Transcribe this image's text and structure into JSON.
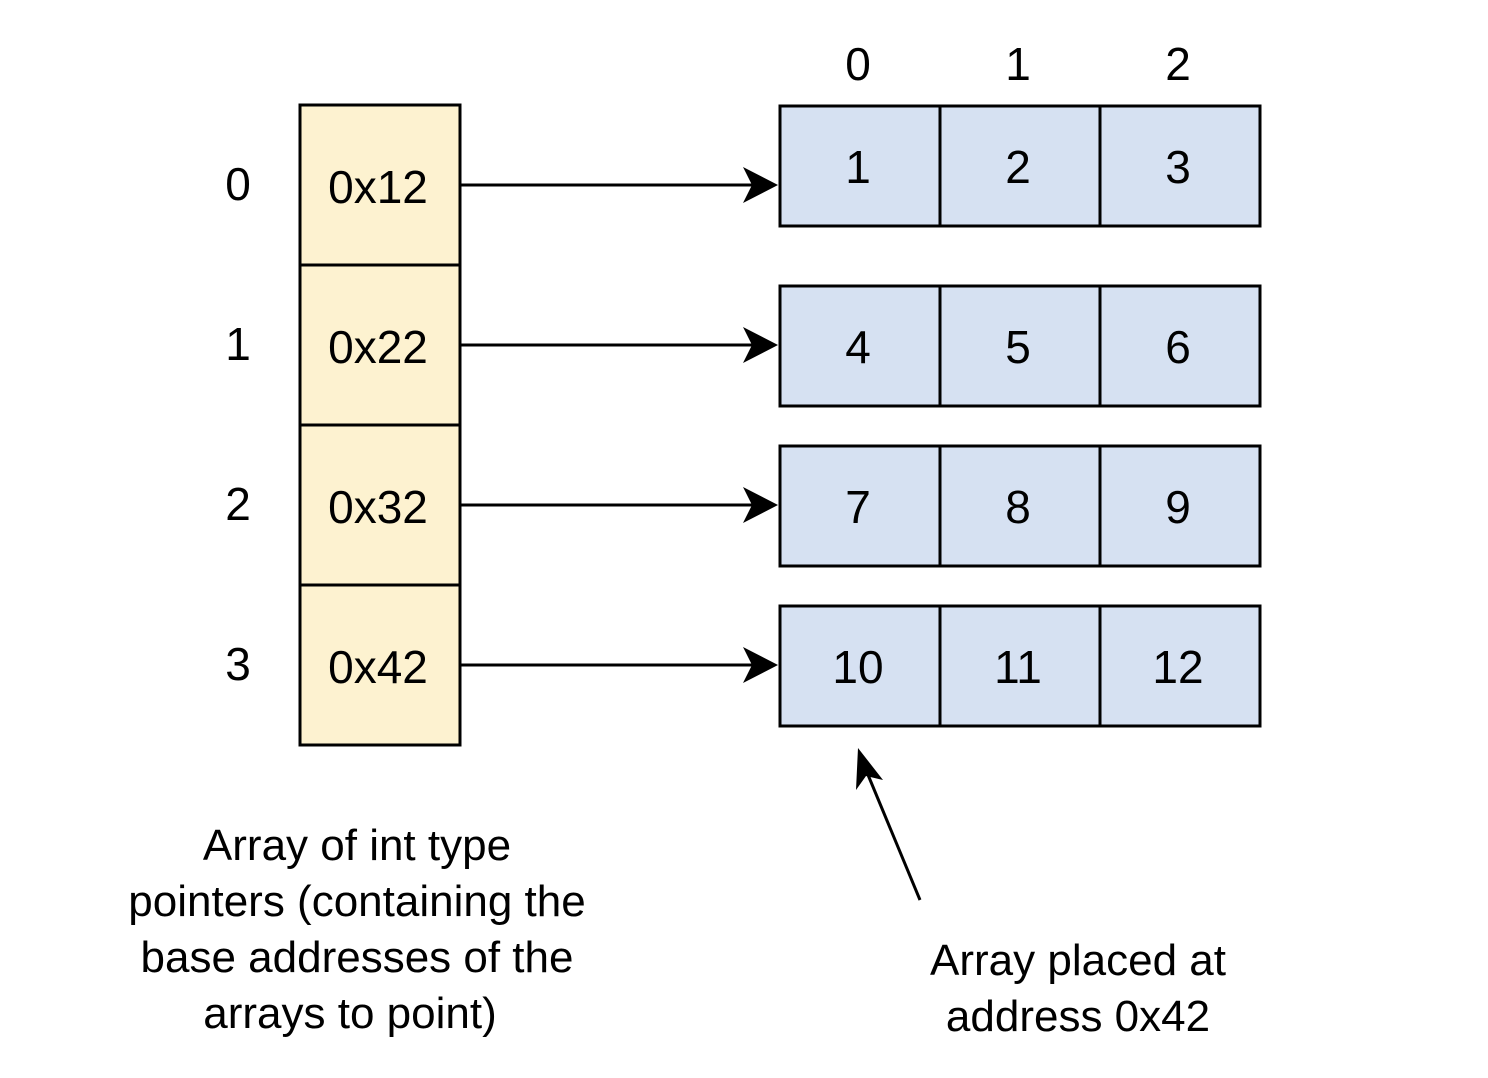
{
  "pointer_array": {
    "indices": [
      "0",
      "1",
      "2",
      "3"
    ],
    "addresses": [
      "0x12",
      "0x22",
      "0x32",
      "0x42"
    ],
    "fill": "#fdf2d0"
  },
  "int_arrays": {
    "column_indices": [
      "0",
      "1",
      "2"
    ],
    "rows": [
      [
        "1",
        "2",
        "3"
      ],
      [
        "4",
        "5",
        "6"
      ],
      [
        "7",
        "8",
        "9"
      ],
      [
        "10",
        "11",
        "12"
      ]
    ],
    "fill": "#d6e1f2"
  },
  "captions": {
    "pointer_array": [
      "Array of int type",
      "pointers (containing the",
      "base addresses of the",
      "arrays to point)"
    ],
    "placed_array": [
      "Array placed at",
      "address 0x42"
    ]
  },
  "stroke_color": "#000000"
}
